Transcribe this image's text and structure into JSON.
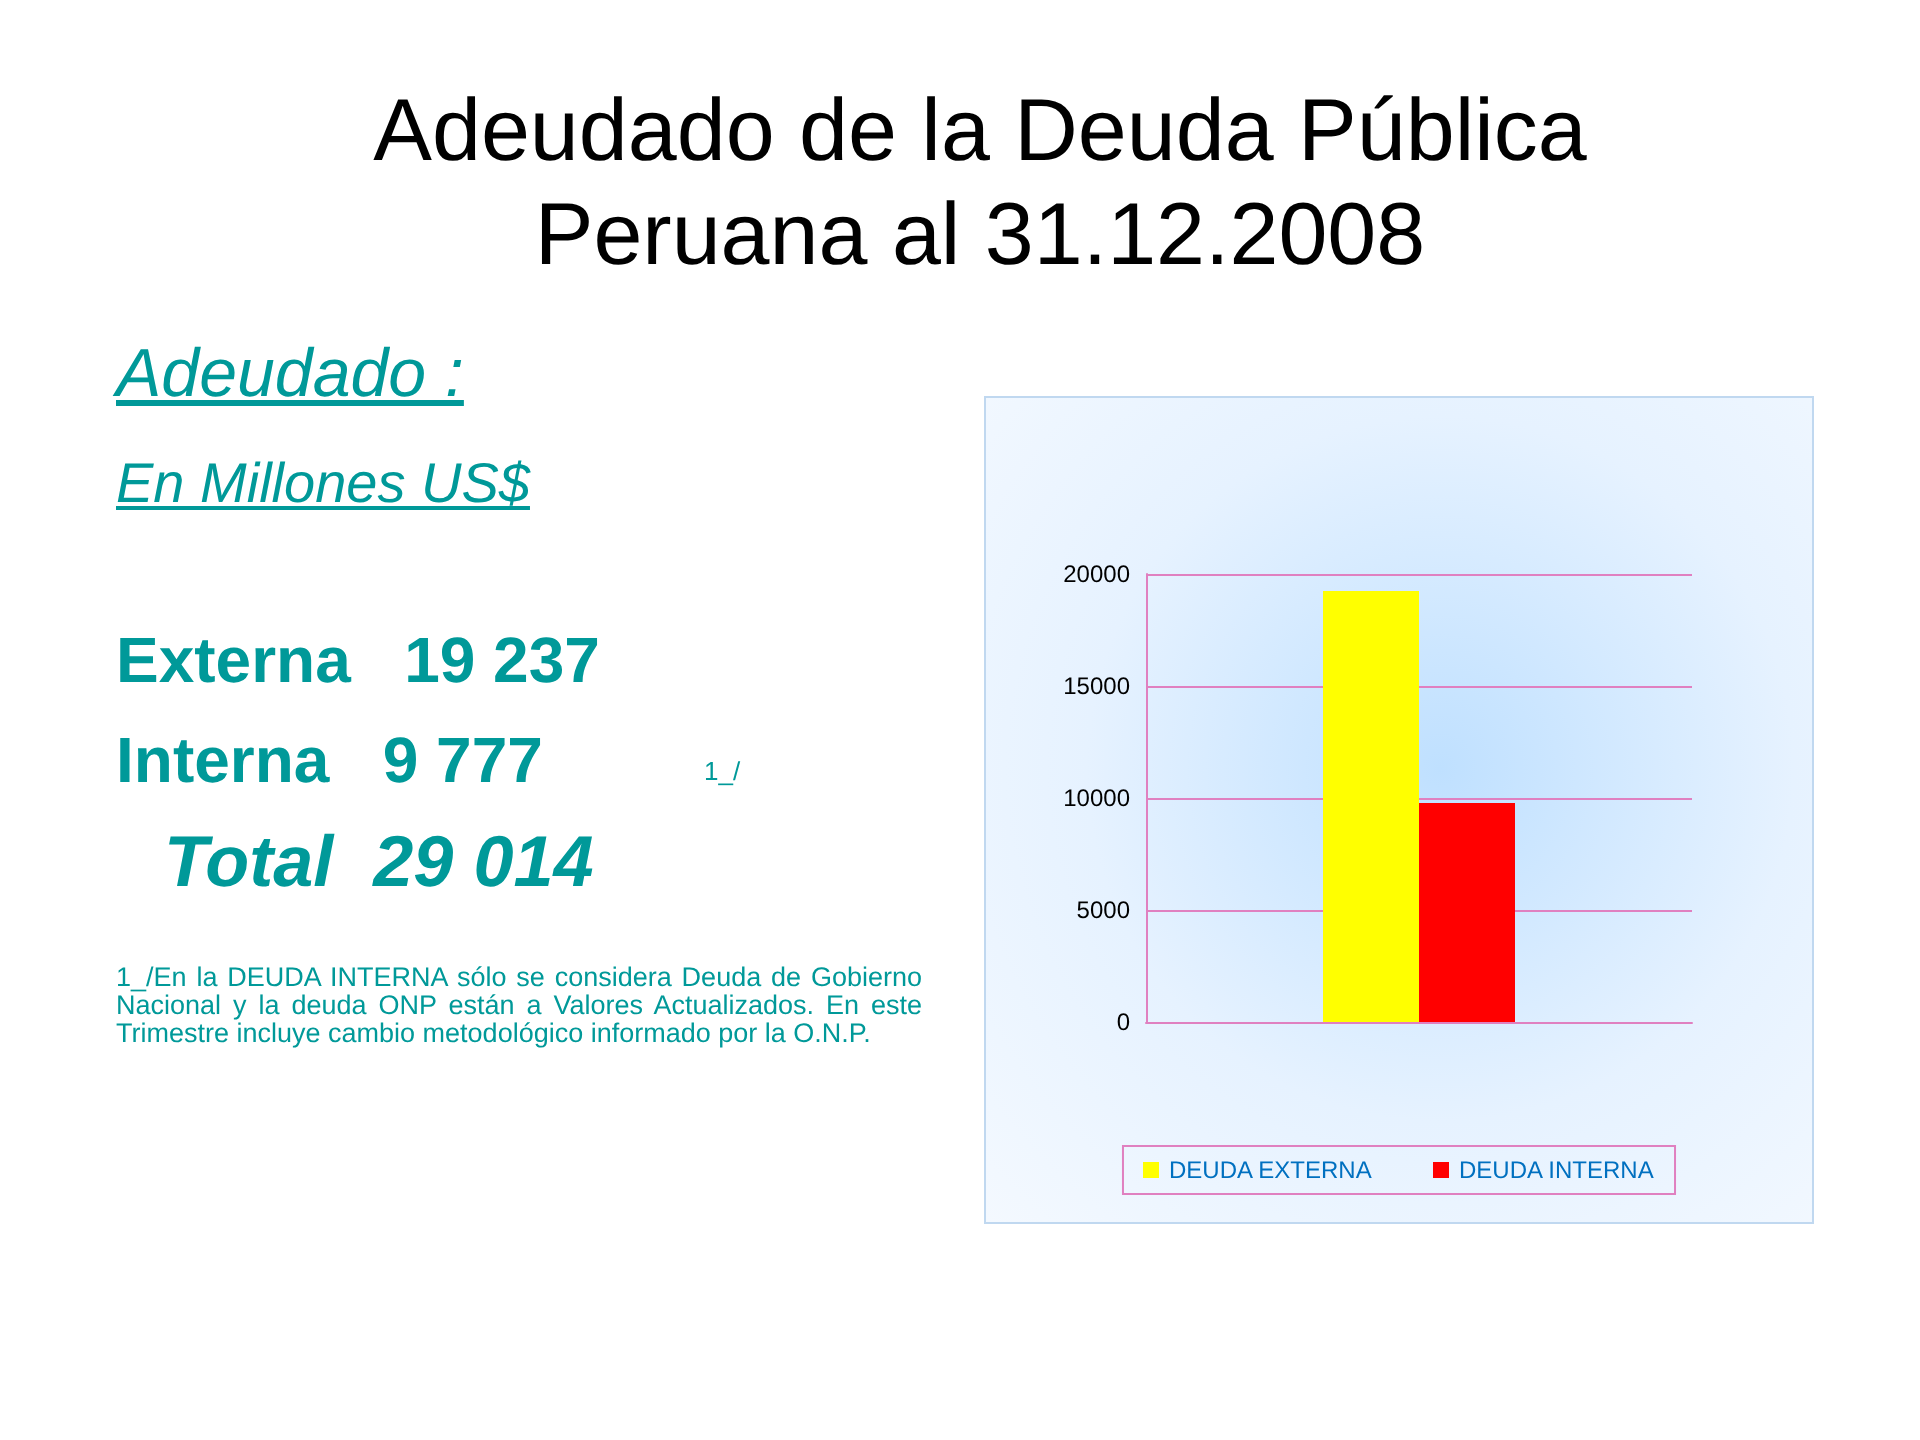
{
  "chart_data": {
    "type": "bar",
    "title": "Adeudado de la Deuda Pública Peruana al 31.12.2008",
    "annotations": [
      "Adeudado :",
      "En Millones US$",
      "Externa   19 237",
      "Interna   9 777",
      "1_/",
      "Total  29 014",
      "1_/En la DEUDA INTERNA sólo se considera Deuda de Gobierno Nacional y la deuda ONP están a Valores Actualizados. En este Trimestre incluye cambio metodológico informado por la O.N.P."
    ],
    "categories": [
      null
    ],
    "series": [
      {
        "name": "DEUDA EXTERNA",
        "color": "#ffff00",
        "values": [
          19237
        ]
      },
      {
        "name": "DEUDA INTERNA",
        "color": "#ff0000",
        "values": [
          9777
        ]
      }
    ],
    "ylim": [
      0,
      20000
    ],
    "yticks": [
      0,
      5000,
      10000,
      15000,
      20000
    ],
    "grid": "y",
    "legend": "bottom"
  }
}
